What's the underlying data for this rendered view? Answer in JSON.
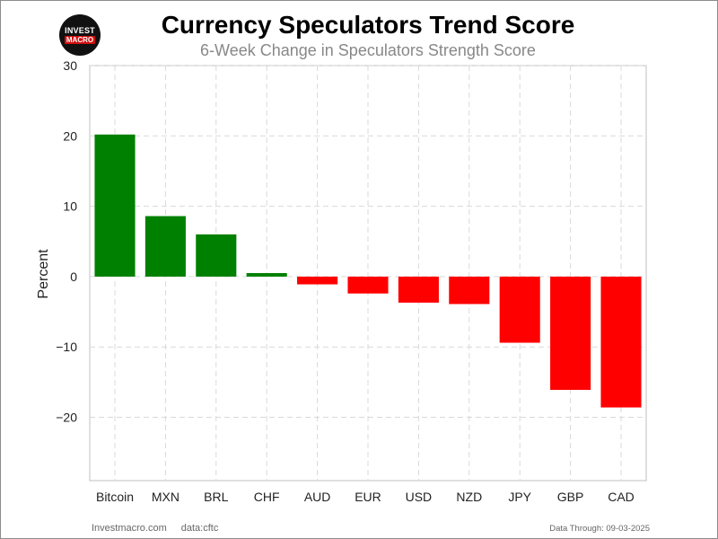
{
  "title": "Currency Speculators Trend Score",
  "subtitle": "6-Week Change in Speculators Strength Score",
  "logo": {
    "line1": "INVEST",
    "line2": "MACRO"
  },
  "footer": {
    "site": "Investmacro.com",
    "source": "data:cftc",
    "data_through": "Data Through: 09-03-2025"
  },
  "colors": {
    "positive": "#008000",
    "negative": "#ff0000",
    "grid": "#d9d9d9"
  },
  "chart_data": {
    "type": "bar",
    "title": "Currency Speculators Trend Score",
    "subtitle": "6-Week Change in Speculators Strength Score",
    "xlabel": "",
    "ylabel": "Percent",
    "ylim": [
      -29,
      30
    ],
    "yticks": [
      30,
      20,
      10,
      0,
      -10,
      -20
    ],
    "ytick_labels": [
      "30",
      "20",
      "10",
      "0",
      "−10",
      "−20"
    ],
    "grid": true,
    "categories": [
      "Bitcoin",
      "MXN",
      "BRL",
      "CHF",
      "AUD",
      "EUR",
      "USD",
      "NZD",
      "JPY",
      "GBP",
      "CAD"
    ],
    "values": [
      20.2,
      8.6,
      6.0,
      0.5,
      -1.1,
      -2.4,
      -3.7,
      -3.9,
      -9.4,
      -16.1,
      -18.6
    ]
  }
}
